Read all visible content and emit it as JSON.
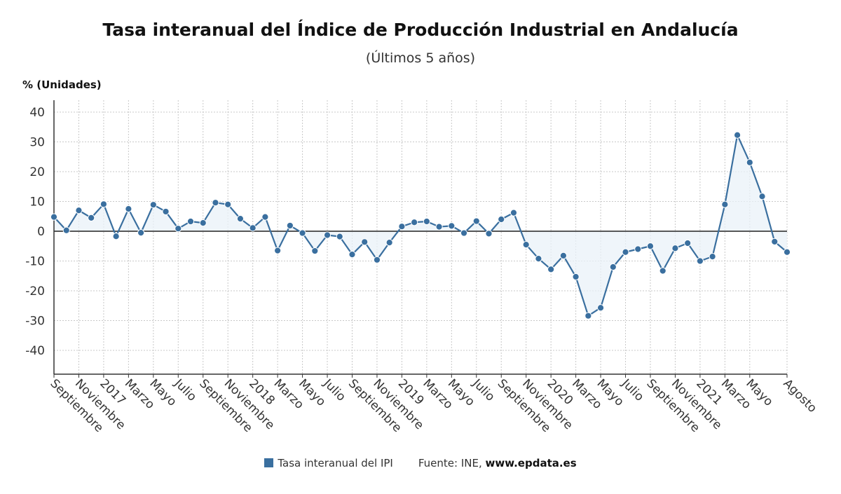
{
  "chart_data": {
    "type": "line",
    "title": "Tasa interanual del Índice de Producción Industrial en Andalucía",
    "subtitle": "(Últimos 5 años)",
    "ylabel": "% (Unidades)",
    "ylim": [
      -48,
      44
    ],
    "yticks": [
      40,
      30,
      20,
      10,
      0,
      -10,
      -20,
      -30,
      -40
    ],
    "grid": true,
    "legend_placement": "bottom",
    "x_tick_labels": [
      "Septiembre",
      "Noviembre",
      "2017",
      "Marzo",
      "Mayo",
      "Julio",
      "Septiembre",
      "Noviembre",
      "2018",
      "Marzo",
      "Mayo",
      "Julio",
      "Septiembre",
      "Noviembre",
      "2019",
      "Marzo",
      "Mayo",
      "Julio",
      "Septiembre",
      "Noviembre",
      "2020",
      "Marzo",
      "Mayo",
      "Julio",
      "Septiembre",
      "Noviembre",
      "2021",
      "Marzo",
      "Mayo",
      "Agosto"
    ],
    "x_tick_indices": [
      0,
      2,
      4,
      6,
      8,
      10,
      12,
      14,
      16,
      18,
      20,
      22,
      24,
      26,
      28,
      30,
      32,
      34,
      36,
      38,
      40,
      42,
      44,
      46,
      48,
      50,
      52,
      54,
      56,
      59
    ],
    "series": [
      {
        "name": "Tasa interanual del IPI",
        "color": "#3a6f9f",
        "values": [
          4.8,
          0.3,
          7.0,
          4.5,
          9.1,
          -1.7,
          7.5,
          -0.5,
          8.9,
          6.6,
          0.9,
          3.3,
          2.8,
          9.6,
          9.0,
          4.2,
          1.1,
          4.8,
          -6.5,
          1.9,
          -0.6,
          -6.6,
          -1.3,
          -1.8,
          -7.8,
          -3.6,
          -9.6,
          -3.8,
          1.6,
          3.0,
          3.3,
          1.5,
          1.8,
          -0.6,
          3.4,
          -0.8,
          4.0,
          6.2,
          -4.5,
          -9.2,
          -12.8,
          -8.2,
          -15.3,
          -28.4,
          -25.7,
          -12.0,
          -7.0,
          -6.0,
          -5.0,
          -13.3,
          -5.7,
          -4.0,
          -10.0,
          -8.5,
          9.0,
          32.3,
          23.1,
          11.7,
          -3.5,
          -7.0
        ]
      }
    ]
  },
  "legend": {
    "series_label": "Tasa interanual del IPI",
    "source_label": "Fuente: INE, ",
    "source_site": "www.epdata.es"
  }
}
